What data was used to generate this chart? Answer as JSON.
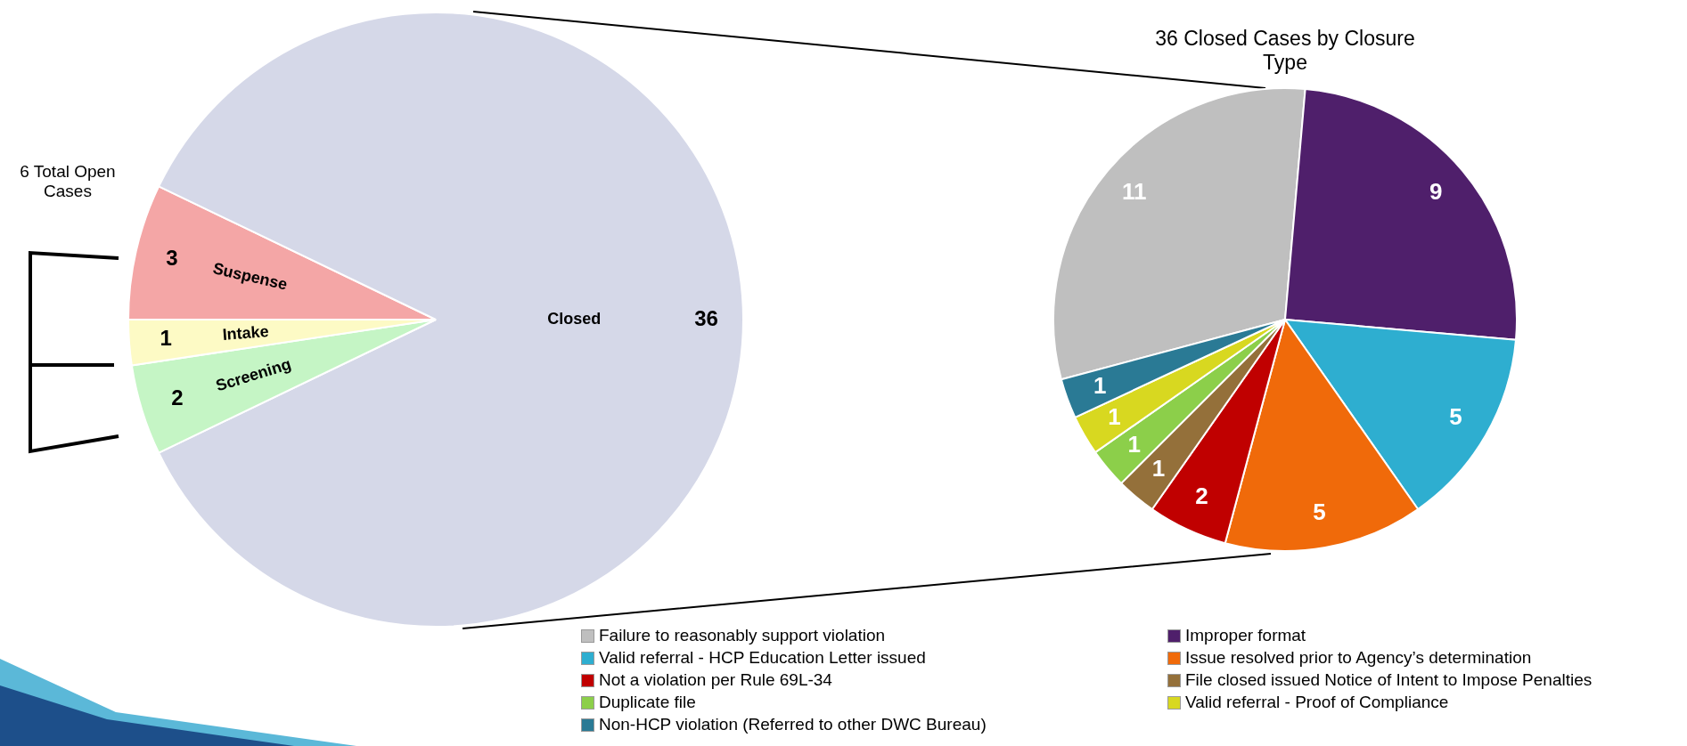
{
  "chart_data": [
    {
      "type": "pie",
      "categories": [
        "Suspense",
        "Closed",
        "Screening",
        "Intake"
      ],
      "values": [
        3,
        36,
        2,
        1
      ],
      "colors": [
        "#f4a6a6",
        "#d5d8e8",
        "#c5f5c5",
        "#fdfac5"
      ],
      "data_labels": true,
      "annotations": [
        "6 Total Open Cases"
      ]
    },
    {
      "type": "pie",
      "title": "36 Closed Cases by Closure Type",
      "categories": [
        "Failure to reasonably support violation",
        "Improper format",
        "Valid referral - HCP Education Letter issued",
        "Issue resolved prior to Agency’s determination",
        "Not a violation per Rule 69L-34",
        "File closed issued Notice of Intent to Impose Penalties",
        "Duplicate file",
        "Valid referral - Proof of Compliance",
        "Non-HCP violation (Referred to other DWC Bureau)"
      ],
      "values": [
        11,
        9,
        5,
        5,
        2,
        1,
        1,
        1,
        1
      ],
      "colors": [
        "#bfbfbf",
        "#4f1f6b",
        "#2eaed0",
        "#f06a0a",
        "#c00000",
        "#94703a",
        "#8ccf4a",
        "#d8d820",
        "#2a7a95"
      ],
      "data_labels": true,
      "legend": "bottom"
    }
  ]
}
